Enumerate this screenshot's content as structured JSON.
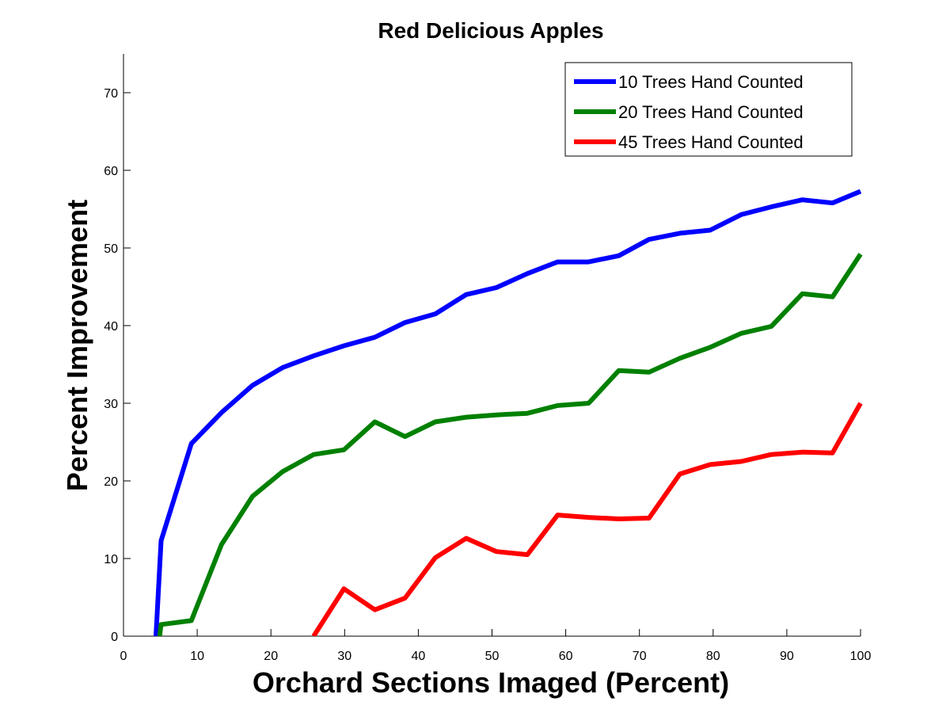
{
  "chart_data": {
    "type": "line",
    "title": "Red Delicious Apples",
    "xlabel": "Orchard Sections Imaged (Percent)",
    "ylabel": "Percent Improvement",
    "xlim": [
      0,
      100
    ],
    "ylim": [
      0,
      75
    ],
    "xticks": [
      0,
      10,
      20,
      30,
      40,
      50,
      60,
      70,
      80,
      90,
      100
    ],
    "yticks": [
      0,
      10,
      20,
      30,
      40,
      50,
      60,
      70
    ],
    "grid": false,
    "legend_position": "top-right",
    "series": [
      {
        "name": "10 Trees Hand Counted",
        "color": "#0000ff",
        "x": [
          4.4,
          5.1,
          9.2,
          13.3,
          17.5,
          21.6,
          25.8,
          29.9,
          34.1,
          38.2,
          42.3,
          46.5,
          50.6,
          54.8,
          58.9,
          63.1,
          67.2,
          71.3,
          75.5,
          79.6,
          83.8,
          87.9,
          92.1,
          96.2,
          100
        ],
        "values": [
          0,
          12.3,
          24.8,
          28.8,
          32.3,
          34.6,
          36.1,
          37.4,
          38.5,
          40.4,
          41.5,
          44.0,
          44.9,
          46.7,
          48.2,
          48.2,
          49.0,
          51.1,
          51.9,
          52.3,
          54.3,
          55.3,
          56.2,
          55.8,
          57.3
        ]
      },
      {
        "name": "20 Trees Hand Counted",
        "color": "#008000",
        "x": [
          4.9,
          5.1,
          9.2,
          13.3,
          17.5,
          21.6,
          25.8,
          29.9,
          34.1,
          38.2,
          42.3,
          46.5,
          50.6,
          54.8,
          58.9,
          63.1,
          67.2,
          71.3,
          75.5,
          79.6,
          83.8,
          87.9,
          92.1,
          96.2,
          100
        ],
        "values": [
          0,
          1.5,
          2.0,
          11.8,
          18.0,
          21.2,
          23.4,
          24.0,
          27.6,
          25.7,
          27.6,
          28.2,
          28.5,
          28.7,
          29.7,
          30.0,
          34.2,
          34.0,
          35.8,
          37.2,
          39.0,
          39.9,
          44.1,
          43.7,
          49.2
        ]
      },
      {
        "name": "45 Trees Hand Counted",
        "color": "#ff0000",
        "x": [
          25.8,
          29.9,
          34.1,
          38.2,
          42.3,
          46.5,
          50.6,
          54.8,
          58.9,
          63.1,
          67.2,
          71.3,
          75.5,
          79.6,
          83.8,
          87.9,
          92.1,
          96.2,
          100
        ],
        "values": [
          0,
          6.1,
          3.4,
          4.9,
          10.1,
          12.6,
          10.9,
          10.5,
          15.6,
          15.3,
          15.1,
          15.2,
          20.9,
          22.1,
          22.5,
          23.4,
          23.7,
          23.6,
          30.0
        ]
      }
    ]
  }
}
